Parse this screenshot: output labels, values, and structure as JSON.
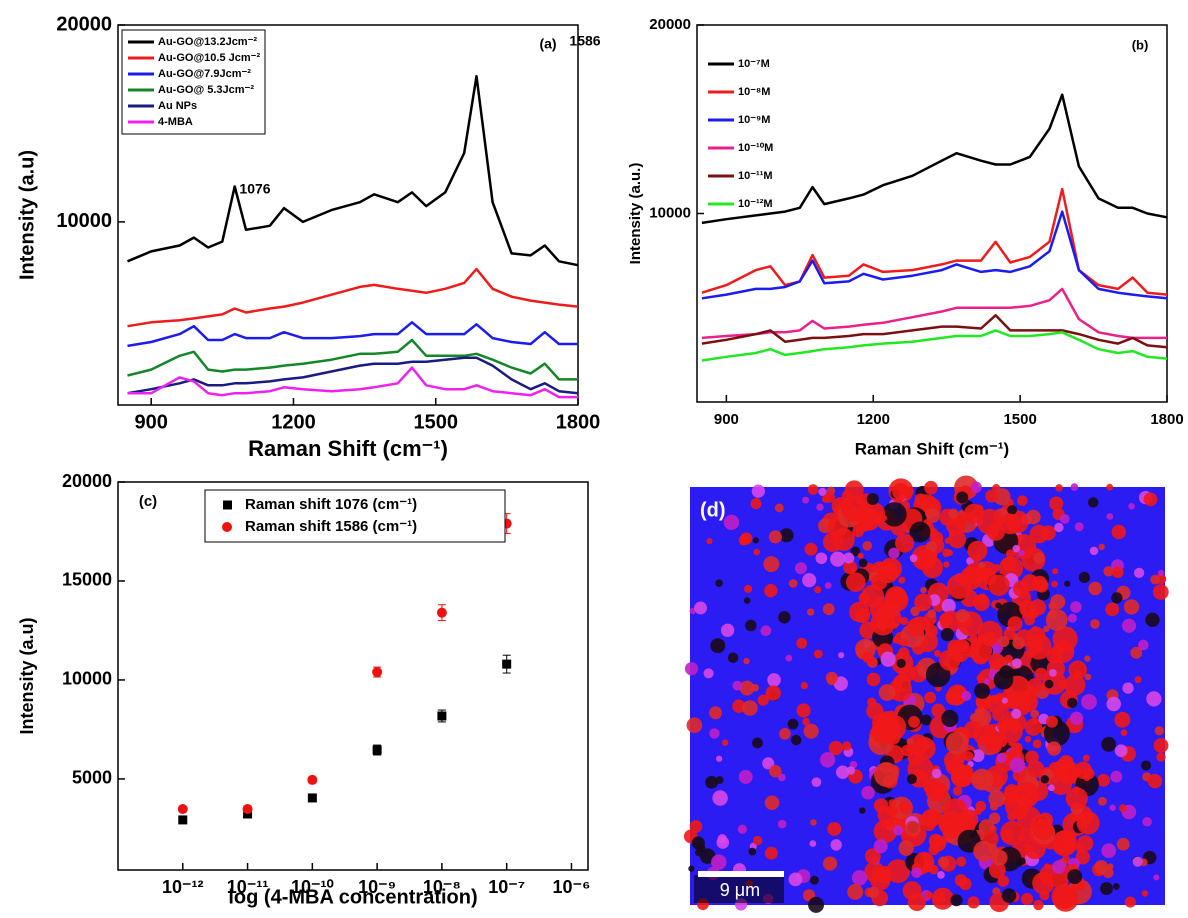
{
  "chart_data": [
    {
      "type": "line",
      "title": "(a)",
      "x_label": "Raman Shift (cm⁻¹)",
      "y_label": "Intensity (a.u)",
      "annotations": [
        "1076",
        "1586"
      ],
      "x": [
        850,
        900,
        960,
        990,
        1020,
        1050,
        1076,
        1100,
        1150,
        1180,
        1220,
        1280,
        1340,
        1370,
        1420,
        1450,
        1480,
        1520,
        1560,
        1586,
        1620,
        1660,
        1700,
        1730,
        1760,
        1800
      ],
      "xlim": [
        830,
        1800
      ],
      "xticks": [
        900,
        1200,
        1500,
        1800
      ],
      "ylim": [
        700,
        20000
      ],
      "yticks": [
        10000,
        20000
      ],
      "legend": "upper left",
      "series": [
        {
          "name": "Au-GO@13.2Jcm⁻²",
          "color": "#000000",
          "values": [
            8000,
            8500,
            8800,
            9200,
            8700,
            9000,
            11800,
            9600,
            9800,
            10700,
            10000,
            10600,
            11000,
            11400,
            11000,
            11500,
            10800,
            11500,
            13500,
            17400,
            11000,
            8400,
            8300,
            8800,
            8000,
            7800
          ]
        },
        {
          "name": "Au-GO@10.5 Jcm⁻²",
          "color": "#ee1c1c",
          "values": [
            4700,
            4900,
            5000,
            5100,
            5200,
            5300,
            5600,
            5400,
            5600,
            5700,
            5900,
            6300,
            6700,
            6800,
            6600,
            6500,
            6400,
            6600,
            6900,
            7600,
            6600,
            6200,
            6000,
            5900,
            5800,
            5700
          ]
        },
        {
          "name": "Au-GO@7.9Jcm⁻²",
          "color": "#1c1cee",
          "values": [
            3700,
            3900,
            4300,
            4700,
            4000,
            4000,
            4300,
            4100,
            4100,
            4400,
            4100,
            4100,
            4200,
            4300,
            4300,
            4900,
            4300,
            4300,
            4300,
            4800,
            4100,
            3900,
            3800,
            4400,
            3800,
            3800
          ]
        },
        {
          "name": "Au-GO@ 5.3Jcm⁻²",
          "color": "#16862a",
          "values": [
            2200,
            2500,
            3200,
            3400,
            2500,
            2400,
            2500,
            2500,
            2600,
            2700,
            2800,
            3000,
            3300,
            3300,
            3400,
            4000,
            3200,
            3200,
            3200,
            3300,
            3000,
            2600,
            2300,
            2800,
            2000,
            2000
          ]
        },
        {
          "name": "Au NPs",
          "color": "#1a1a80",
          "values": [
            1300,
            1500,
            1800,
            2000,
            1700,
            1700,
            1800,
            1800,
            1900,
            2000,
            2100,
            2400,
            2700,
            2800,
            2800,
            2900,
            2900,
            3000,
            3100,
            3100,
            2700,
            2000,
            1500,
            1800,
            1400,
            1300
          ]
        },
        {
          "name": "4-MBA",
          "color": "#ee22ee",
          "values": [
            1300,
            1300,
            2100,
            1900,
            1300,
            1200,
            1300,
            1300,
            1400,
            1600,
            1500,
            1400,
            1500,
            1600,
            1800,
            2600,
            1700,
            1500,
            1500,
            1700,
            1400,
            1300,
            1200,
            1500,
            1100,
            1100
          ]
        }
      ]
    },
    {
      "type": "line",
      "title": "(b)",
      "x_label": "Raman Shift (cm⁻¹)",
      "y_label": "Intensity (a.u.)",
      "x": [
        850,
        900,
        960,
        990,
        1020,
        1050,
        1076,
        1100,
        1150,
        1180,
        1220,
        1280,
        1340,
        1370,
        1420,
        1450,
        1480,
        1520,
        1560,
        1586,
        1620,
        1660,
        1700,
        1730,
        1760,
        1800
      ],
      "xlim": [
        840,
        1800
      ],
      "xticks": [
        900,
        1200,
        1500,
        1800
      ],
      "ylim": [
        0,
        20000
      ],
      "yticks": [
        10000,
        20000
      ],
      "legend": "upper left",
      "series": [
        {
          "name": "10⁻⁷M",
          "color": "#000000",
          "values": [
            9500,
            9700,
            9900,
            10000,
            10100,
            10300,
            11400,
            10500,
            10800,
            11000,
            11500,
            12000,
            12800,
            13200,
            12800,
            12600,
            12600,
            13000,
            14500,
            16300,
            12500,
            10800,
            10300,
            10300,
            10000,
            9800
          ]
        },
        {
          "name": "10⁻⁸M",
          "color": "#ee1c1c",
          "values": [
            5800,
            6200,
            7000,
            7200,
            6200,
            6400,
            7800,
            6600,
            6700,
            7300,
            6900,
            7000,
            7300,
            7500,
            7500,
            8500,
            7400,
            7700,
            8500,
            11300,
            7000,
            6200,
            6000,
            6600,
            5800,
            5700
          ]
        },
        {
          "name": "10⁻⁹M",
          "color": "#1c1cee",
          "values": [
            5500,
            5700,
            6000,
            6000,
            6100,
            6400,
            7500,
            6300,
            6400,
            6800,
            6500,
            6700,
            7000,
            7300,
            6900,
            7000,
            6900,
            7200,
            8000,
            10100,
            7000,
            6000,
            5800,
            5700,
            5600,
            5500
          ]
        },
        {
          "name": "10⁻¹⁰M",
          "color": "#e8228a",
          "values": [
            3400,
            3500,
            3600,
            3700,
            3700,
            3800,
            4300,
            3900,
            4000,
            4100,
            4200,
            4500,
            4800,
            5000,
            5000,
            5000,
            5000,
            5100,
            5400,
            6000,
            4400,
            3700,
            3500,
            3400,
            3400,
            3400
          ]
        },
        {
          "name": "10⁻¹¹M",
          "color": "#7a1010",
          "values": [
            3100,
            3300,
            3600,
            3800,
            3200,
            3300,
            3400,
            3400,
            3500,
            3600,
            3600,
            3800,
            4000,
            4000,
            3900,
            4600,
            3800,
            3800,
            3800,
            3800,
            3600,
            3300,
            3100,
            3400,
            3000,
            2900
          ]
        },
        {
          "name": "10⁻¹²M",
          "color": "#22e822",
          "values": [
            2200,
            2400,
            2600,
            2800,
            2500,
            2600,
            2700,
            2800,
            2900,
            3000,
            3100,
            3200,
            3400,
            3500,
            3500,
            3800,
            3500,
            3500,
            3600,
            3700,
            3300,
            2800,
            2600,
            2700,
            2400,
            2300
          ]
        }
      ]
    },
    {
      "type": "scatter",
      "title": "(c)",
      "x_label": "log (4-MBA concentration)",
      "y_label": "Intensity (a.u)",
      "log_x": true,
      "x": [
        1e-12,
        1e-11,
        1e-10,
        1e-09,
        1e-08,
        1e-07
      ],
      "xlim": [
        1e-13,
        1.8e-06
      ],
      "xticks": [
        {
          "value": 1e-12,
          "label": "10⁻¹²"
        },
        {
          "value": 1e-11,
          "label": "10⁻¹¹"
        },
        {
          "value": 1e-10,
          "label": "10⁻¹⁰"
        },
        {
          "value": 1e-09,
          "label": "10⁻⁹"
        },
        {
          "value": 1e-08,
          "label": "10⁻⁸"
        },
        {
          "value": 1e-07,
          "label": "10⁻⁷"
        },
        {
          "value": 1e-06,
          "label": "10⁻⁶"
        }
      ],
      "ylim": [
        400,
        20000
      ],
      "yticks": [
        5000,
        10000,
        15000,
        20000
      ],
      "legend": "upper center",
      "series": [
        {
          "name": "Raman shift 1076 (cm⁻¹)",
          "color": "#000000",
          "marker": "square",
          "values": [
            2930,
            3230,
            4040,
            6460,
            8180,
            10800
          ],
          "errors": [
            100,
            150,
            150,
            250,
            300,
            450
          ]
        },
        {
          "name": "Raman shift 1586 (cm⁻¹)",
          "color": "#ee1111",
          "marker": "circle",
          "values": [
            3480,
            3480,
            4950,
            10400,
            13400,
            17900
          ],
          "errors": [
            100,
            150,
            150,
            250,
            400,
            500
          ]
        }
      ]
    },
    {
      "type": "image",
      "title": "(d)",
      "scale_bar": "9 μm"
    }
  ]
}
